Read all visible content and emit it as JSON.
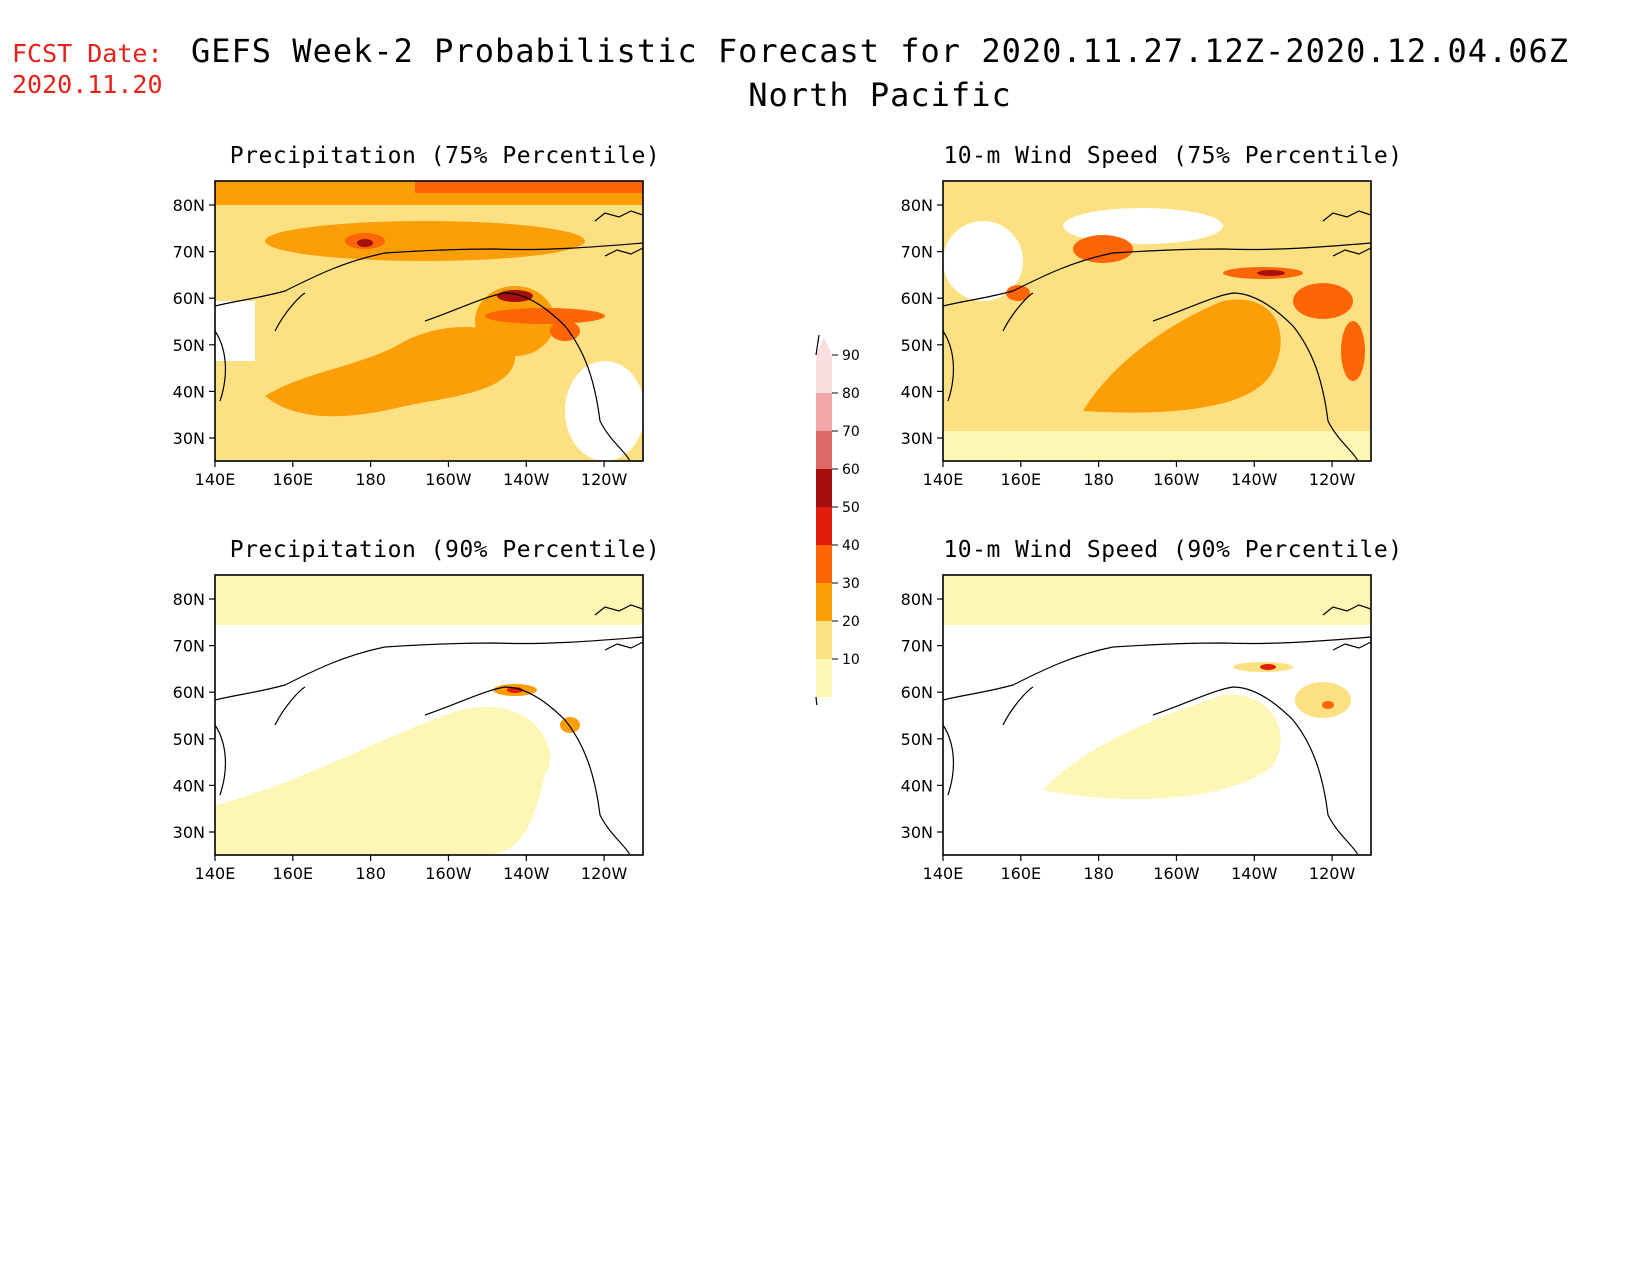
{
  "header": {
    "fcst_label": "FCST Date:",
    "fcst_date": "2020.11.20",
    "title": "GEFS Week-2 Probabilistic Forecast for 2020.11.27.12Z-2020.12.04.06Z",
    "subtitle": "North Pacific"
  },
  "axes": {
    "lat_labels": [
      "80N",
      "70N",
      "60N",
      "50N",
      "40N",
      "30N"
    ],
    "lon_labels": [
      "140E",
      "160E",
      "180",
      "160W",
      "140W",
      "120W"
    ]
  },
  "panels": [
    {
      "id": "precip75",
      "title": "Precipitation (75% Percentile)",
      "level": "high"
    },
    {
      "id": "wind75",
      "title": "10-m Wind Speed (75% Percentile)",
      "level": "high"
    },
    {
      "id": "precip90",
      "title": "Precipitation (90% Percentile)",
      "level": "low"
    },
    {
      "id": "wind90",
      "title": "10-m Wind Speed (90% Percentile)",
      "level": "low"
    }
  ],
  "legend": {
    "labels": [
      "90",
      "80",
      "70",
      "60",
      "50",
      "40",
      "30",
      "20",
      "10"
    ],
    "colors": [
      "#fbdfe0",
      "#f3a6a8",
      "#dd6a66",
      "#a50f0d",
      "#e01c0c",
      "#fd6506",
      "#fb9e07",
      "#fce082",
      "#fef6b4"
    ]
  },
  "colors": {
    "c10": "#fef6b4",
    "c20": "#fce082",
    "c30": "#fb9e07",
    "c40": "#fd6506",
    "c50": "#e01c0c",
    "c60": "#a50f0d"
  }
}
